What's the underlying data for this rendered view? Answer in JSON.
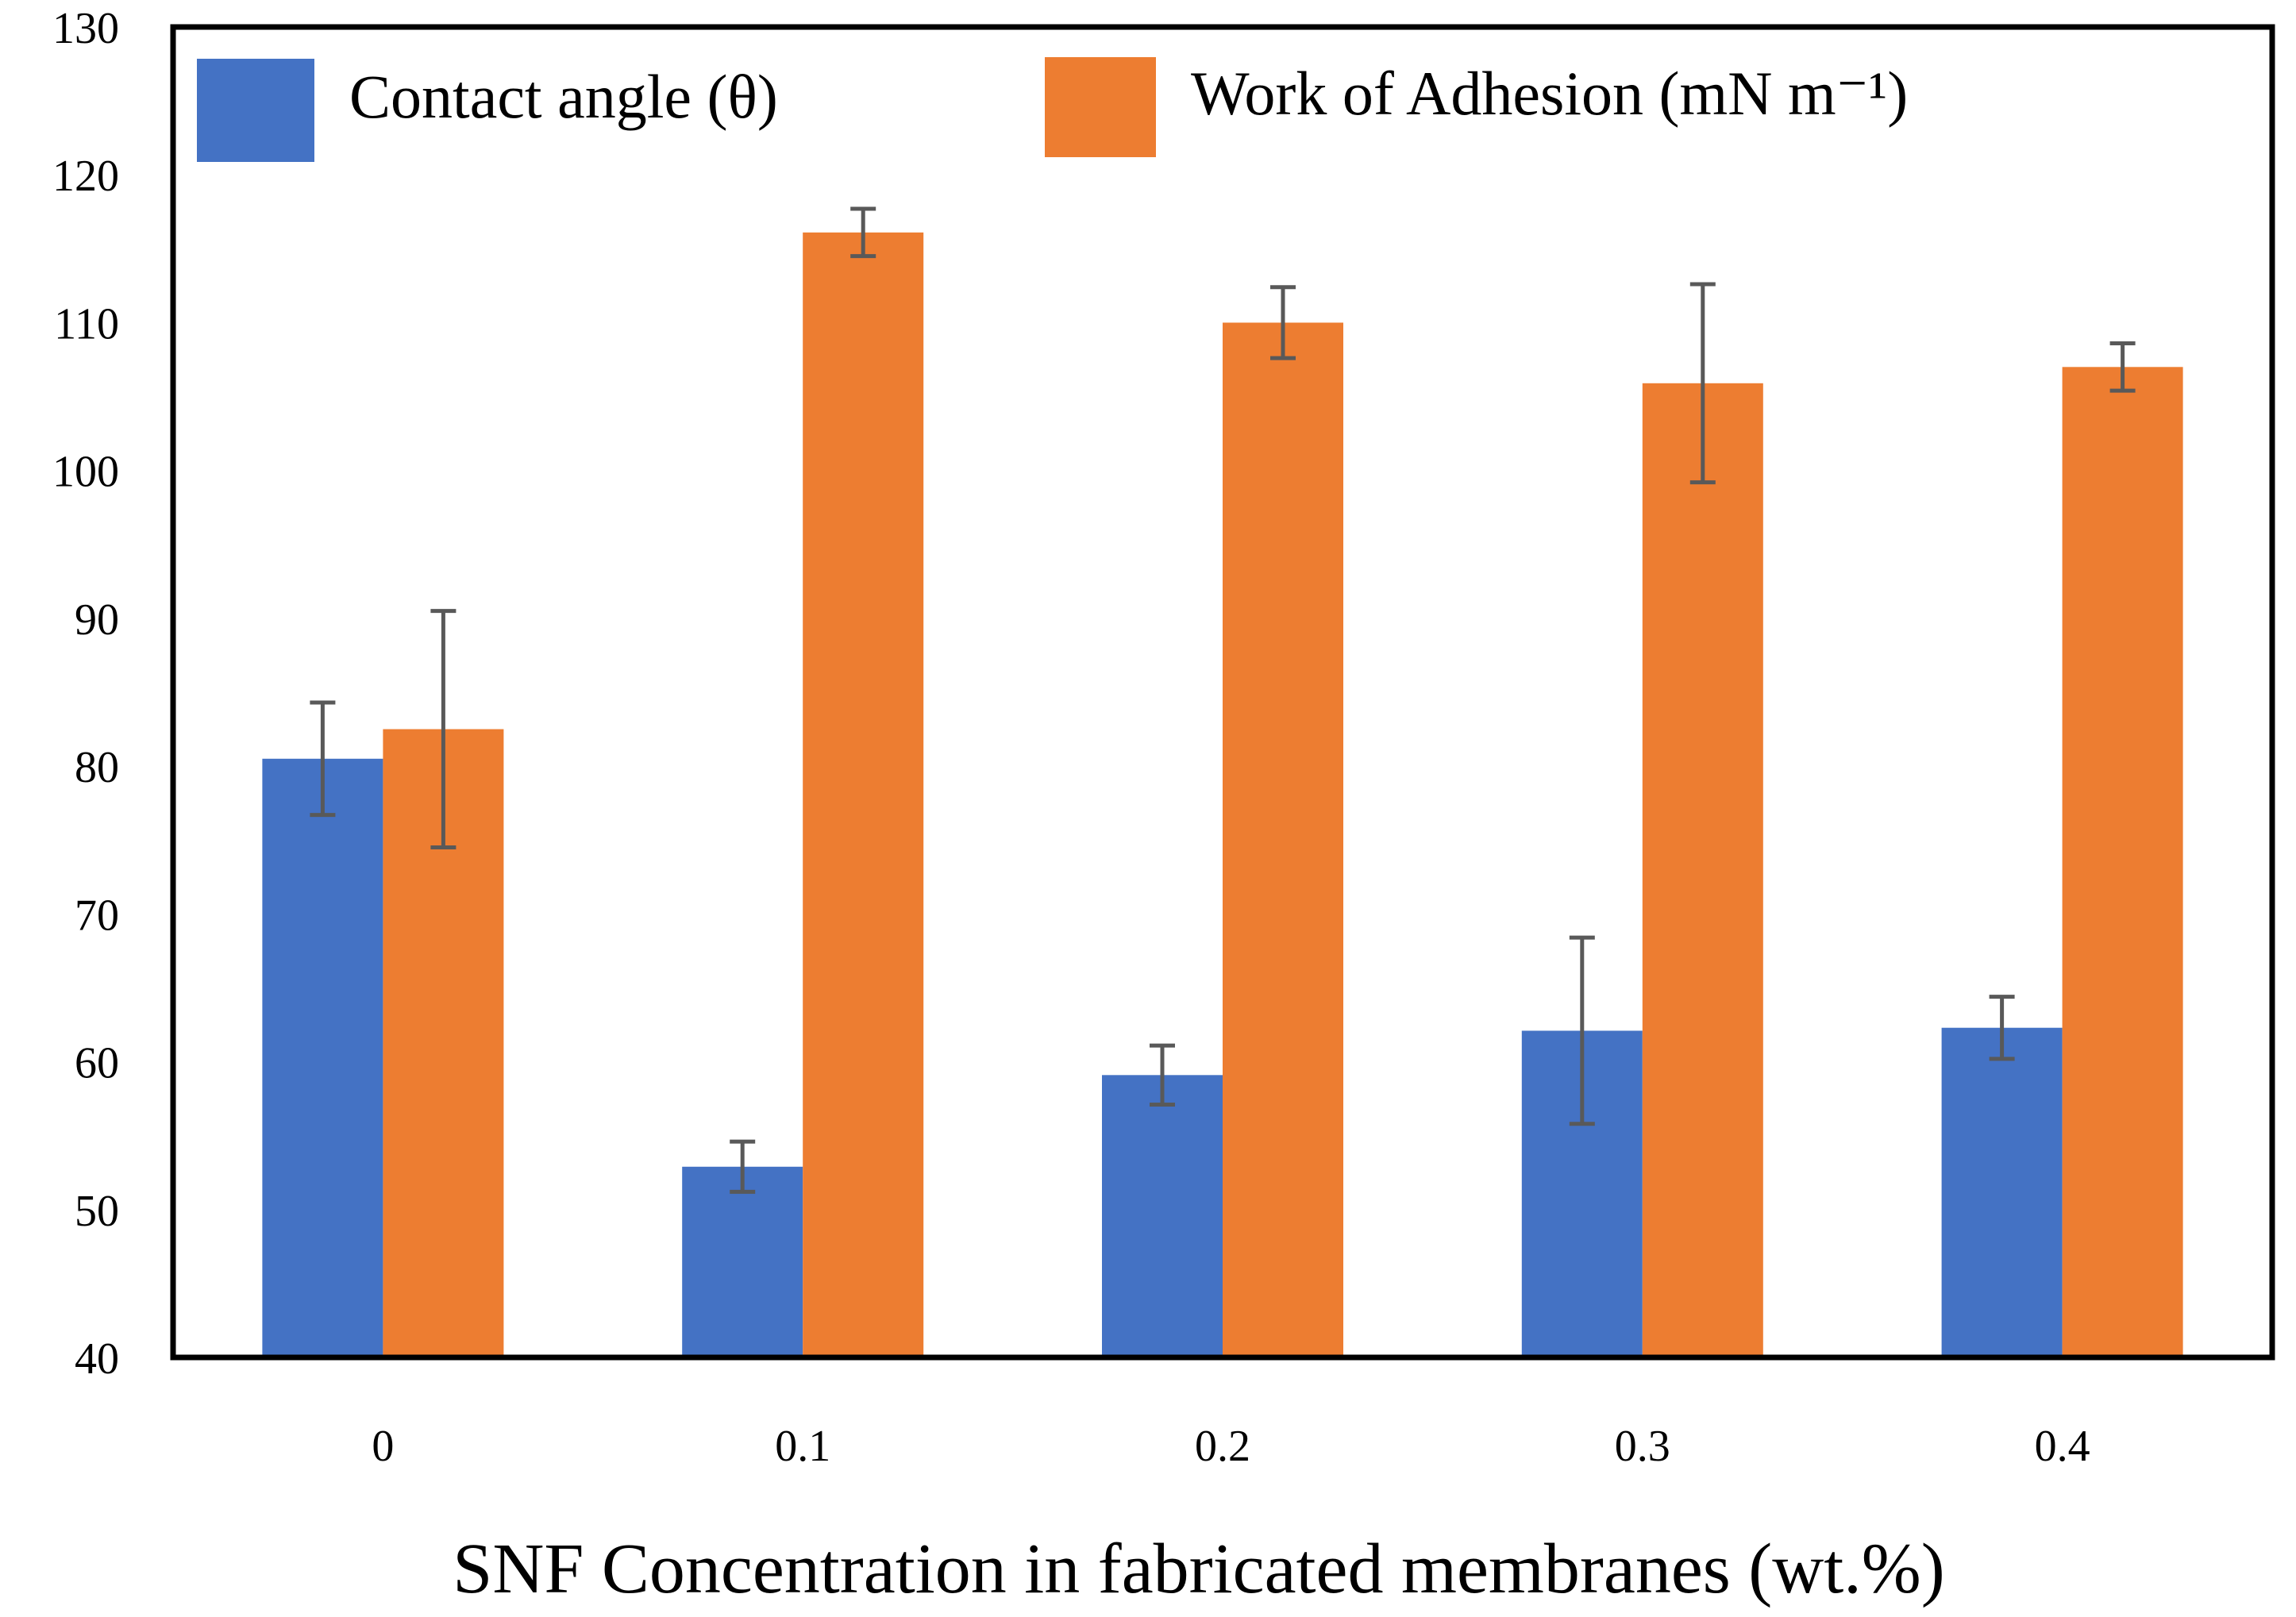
{
  "chart_data": {
    "type": "bar",
    "xlabel": "SNF Concentration in fabricated membranes (wt.%)",
    "ylabel": "",
    "categories": [
      "0",
      "0.1",
      "0.2",
      "0.3",
      "0.4"
    ],
    "ylim": [
      40,
      130
    ],
    "yticks": [
      "40",
      "50",
      "60",
      "70",
      "80",
      "90",
      "100",
      "110",
      "120",
      "130"
    ],
    "grid": false,
    "legend_position": "top",
    "series": [
      {
        "name": "Contact angle (θ)",
        "color": "#4472C4",
        "values": [
          80.5,
          52.9,
          59.1,
          62.1,
          62.3
        ],
        "errors": [
          3.8,
          1.7,
          2.0,
          6.3,
          2.1
        ]
      },
      {
        "name": "Work of Adhesion (mN m⁻¹)",
        "color": "#ED7D31",
        "values": [
          82.5,
          116.1,
          110.0,
          105.9,
          107.0
        ],
        "errors": [
          8.0,
          1.6,
          2.4,
          6.7,
          1.6
        ]
      }
    ],
    "error_bar_color": "#595959",
    "frame_color": "#000000"
  }
}
